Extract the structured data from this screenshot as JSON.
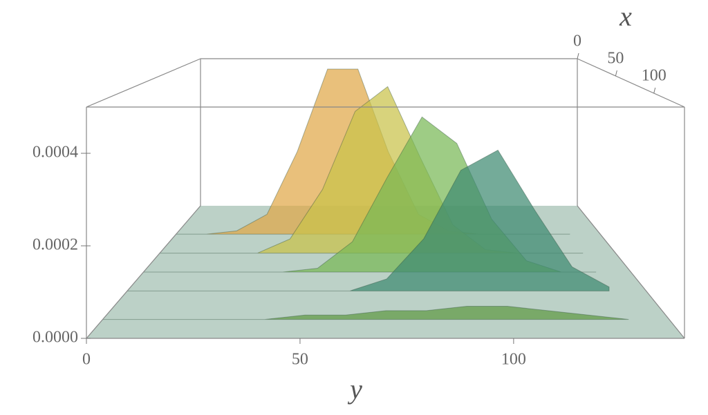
{
  "chart_data": {
    "type": "surface3d",
    "x_label": "x",
    "y_label": "y",
    "xlim": [
      0,
      140
    ],
    "ylim": [
      0,
      140
    ],
    "zlim": [
      0,
      0.0005
    ],
    "xticks": [
      0,
      50,
      100
    ],
    "yticks": [
      0,
      50,
      100
    ],
    "zticks": [
      {
        "value": 0,
        "label": "0.0000"
      },
      0.0002,
      0.0004
    ],
    "y": [
      0,
      10,
      20,
      30,
      40,
      50,
      60,
      70,
      80,
      90,
      100,
      110,
      120,
      130
    ],
    "series": [
      {
        "x": 30,
        "color": "#e0a848",
        "values": [
          0,
          0,
          1e-05,
          6e-05,
          0.00025,
          0.0005,
          0.0005,
          0.00025,
          6e-05,
          1e-05,
          0,
          0,
          0,
          0
        ]
      },
      {
        "x": 50,
        "color": "#c9c24a",
        "values": [
          0,
          0,
          0,
          0,
          4e-05,
          0.00018,
          0.0004,
          0.00047,
          0.00027,
          8e-05,
          1e-05,
          0,
          0,
          0
        ]
      },
      {
        "x": 70,
        "color": "#78b856",
        "values": [
          0,
          0,
          0,
          0,
          0,
          1e-05,
          8e-05,
          0.00025,
          0.00041,
          0.00034,
          0.00014,
          3e-05,
          0,
          0
        ]
      },
      {
        "x": 90,
        "color": "#3f8a72",
        "values": [
          0,
          0,
          0,
          0,
          0,
          0,
          0,
          3e-05,
          0.00013,
          0.0003,
          0.00035,
          0.0002,
          6e-05,
          1e-05
        ]
      },
      {
        "x": 120,
        "color": "#5f9a44",
        "values": [
          0,
          0,
          0,
          0,
          0,
          1e-05,
          1e-05,
          2e-05,
          2e-05,
          3e-05,
          3e-05,
          2e-05,
          1e-05,
          0
        ]
      }
    ]
  }
}
